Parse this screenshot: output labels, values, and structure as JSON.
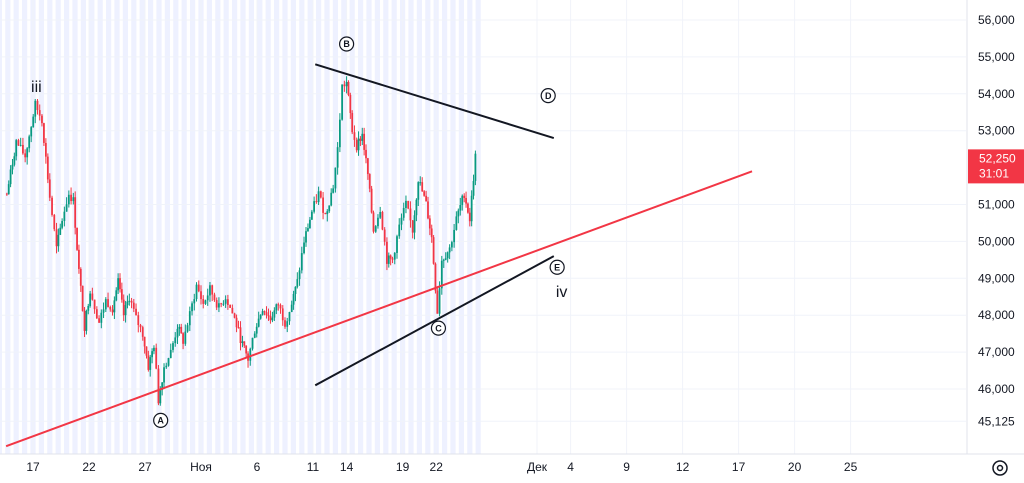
{
  "chart_data": {
    "type": "candlestick",
    "x_axis": {
      "ticks": [
        {
          "label": "17",
          "day": 17
        },
        {
          "label": "22",
          "day": 22
        },
        {
          "label": "27",
          "day": 27
        },
        {
          "label": "Ноя",
          "day": 32
        },
        {
          "label": "6",
          "day": 37
        },
        {
          "label": "11",
          "day": 42
        },
        {
          "label": "14",
          "day": 45
        },
        {
          "label": "19",
          "day": 50
        },
        {
          "label": "22",
          "day": 53
        },
        {
          "label": "Дек",
          "day": 62
        },
        {
          "label": "4",
          "day": 65
        },
        {
          "label": "9",
          "day": 70
        },
        {
          "label": "12",
          "day": 75
        },
        {
          "label": "17",
          "day": 80
        },
        {
          "label": "20",
          "day": 85
        },
        {
          "label": "25",
          "day": 90
        }
      ]
    },
    "y_axis": {
      "range": [
        44500,
        56500
      ],
      "ticks": [
        {
          "label": "56,000",
          "value": 56000
        },
        {
          "label": "55,000",
          "value": 55000
        },
        {
          "label": "54,000",
          "value": 54000
        },
        {
          "label": "53,000",
          "value": 53000
        },
        {
          "label": "51,000",
          "value": 51000
        },
        {
          "label": "50,000",
          "value": 50000
        },
        {
          "label": "49,000",
          "value": 49000
        },
        {
          "label": "48,000",
          "value": 48000
        },
        {
          "label": "47,000",
          "value": 47000
        },
        {
          "label": "46,000",
          "value": 46000
        },
        {
          "label": "45,125",
          "value": 45125
        }
      ]
    },
    "price_path": [
      [
        14.5,
        51000
      ],
      [
        15.5,
        52700
      ],
      [
        16.3,
        52300
      ],
      [
        17.2,
        53700
      ],
      [
        17.8,
        53300
      ],
      [
        18.5,
        51200
      ],
      [
        19.1,
        49800
      ],
      [
        19.6,
        50600
      ],
      [
        20.2,
        51300
      ],
      [
        20.6,
        51100
      ],
      [
        21.1,
        49200
      ],
      [
        21.6,
        47700
      ],
      [
        22.1,
        48700
      ],
      [
        22.9,
        47800
      ],
      [
        23.5,
        48400
      ],
      [
        24.1,
        48200
      ],
      [
        24.6,
        48900
      ],
      [
        25.1,
        48000
      ],
      [
        25.6,
        48500
      ],
      [
        26.2,
        47900
      ],
      [
        26.8,
        47500
      ],
      [
        27.3,
        46600
      ],
      [
        27.8,
        47200
      ],
      [
        28.2,
        45700
      ],
      [
        28.7,
        46600
      ],
      [
        29.3,
        47000
      ],
      [
        29.9,
        47700
      ],
      [
        30.4,
        47300
      ],
      [
        31.0,
        48000
      ],
      [
        31.6,
        48800
      ],
      [
        32.2,
        48300
      ],
      [
        32.8,
        48700
      ],
      [
        33.6,
        48200
      ],
      [
        34.2,
        48500
      ],
      [
        35.0,
        47900
      ],
      [
        35.7,
        47200
      ],
      [
        36.2,
        46800
      ],
      [
        36.8,
        47600
      ],
      [
        37.5,
        48200
      ],
      [
        38.2,
        47900
      ],
      [
        38.9,
        48300
      ],
      [
        39.5,
        47800
      ],
      [
        40.1,
        48300
      ],
      [
        40.6,
        48900
      ],
      [
        41.2,
        50000
      ],
      [
        41.9,
        50800
      ],
      [
        42.5,
        51300
      ],
      [
        43.1,
        50700
      ],
      [
        43.8,
        51500
      ],
      [
        44.2,
        52500
      ],
      [
        44.6,
        54200
      ],
      [
        45.0,
        54300
      ],
      [
        45.5,
        53000
      ],
      [
        45.9,
        52600
      ],
      [
        46.4,
        52900
      ],
      [
        46.9,
        51800
      ],
      [
        47.4,
        50300
      ],
      [
        48.0,
        50900
      ],
      [
        48.6,
        49500
      ],
      [
        49.1,
        49500
      ],
      [
        49.7,
        50400
      ],
      [
        50.3,
        51000
      ],
      [
        50.9,
        50300
      ],
      [
        51.4,
        51700
      ],
      [
        52.1,
        51000
      ],
      [
        52.6,
        50100
      ],
      [
        53.1,
        48100
      ],
      [
        53.5,
        49500
      ],
      [
        54.2,
        49800
      ],
      [
        54.8,
        50600
      ],
      [
        55.5,
        51300
      ],
      [
        56.0,
        50600
      ],
      [
        56.5,
        52300
      ]
    ],
    "trendlines": [
      {
        "color": "#131722",
        "from": [
          42.2,
          54800
        ],
        "to": [
          63.5,
          52800
        ]
      },
      {
        "color": "#131722",
        "from": [
          42.2,
          46100
        ],
        "to": [
          63.5,
          49600
        ]
      },
      {
        "color": "#f23645",
        "from": [
          14.6,
          44450
        ],
        "to": [
          81.2,
          51900
        ]
      }
    ],
    "wave_labels": [
      {
        "text": "iii",
        "day": 17.3,
        "price": 54050
      },
      {
        "text": "iv",
        "day": 64.2,
        "price": 48500
      }
    ],
    "circled_labels": [
      {
        "text": "A",
        "day": 28.4,
        "price": 45150
      },
      {
        "text": "B",
        "day": 45.0,
        "price": 55350
      },
      {
        "text": "C",
        "day": 53.2,
        "price": 47650
      },
      {
        "text": "D",
        "day": 63.0,
        "price": 53950
      },
      {
        "text": "E",
        "day": 63.8,
        "price": 49300
      }
    ],
    "price_tag": {
      "price": "52,250",
      "countdown": "31:01",
      "value": 52250,
      "color": "#f23645"
    },
    "colors": {
      "bull": "#089981",
      "bear": "#f23645",
      "shade": "#eef1ff"
    }
  },
  "toolbar": {
    "settings_icon": "settings-gear-icon"
  }
}
